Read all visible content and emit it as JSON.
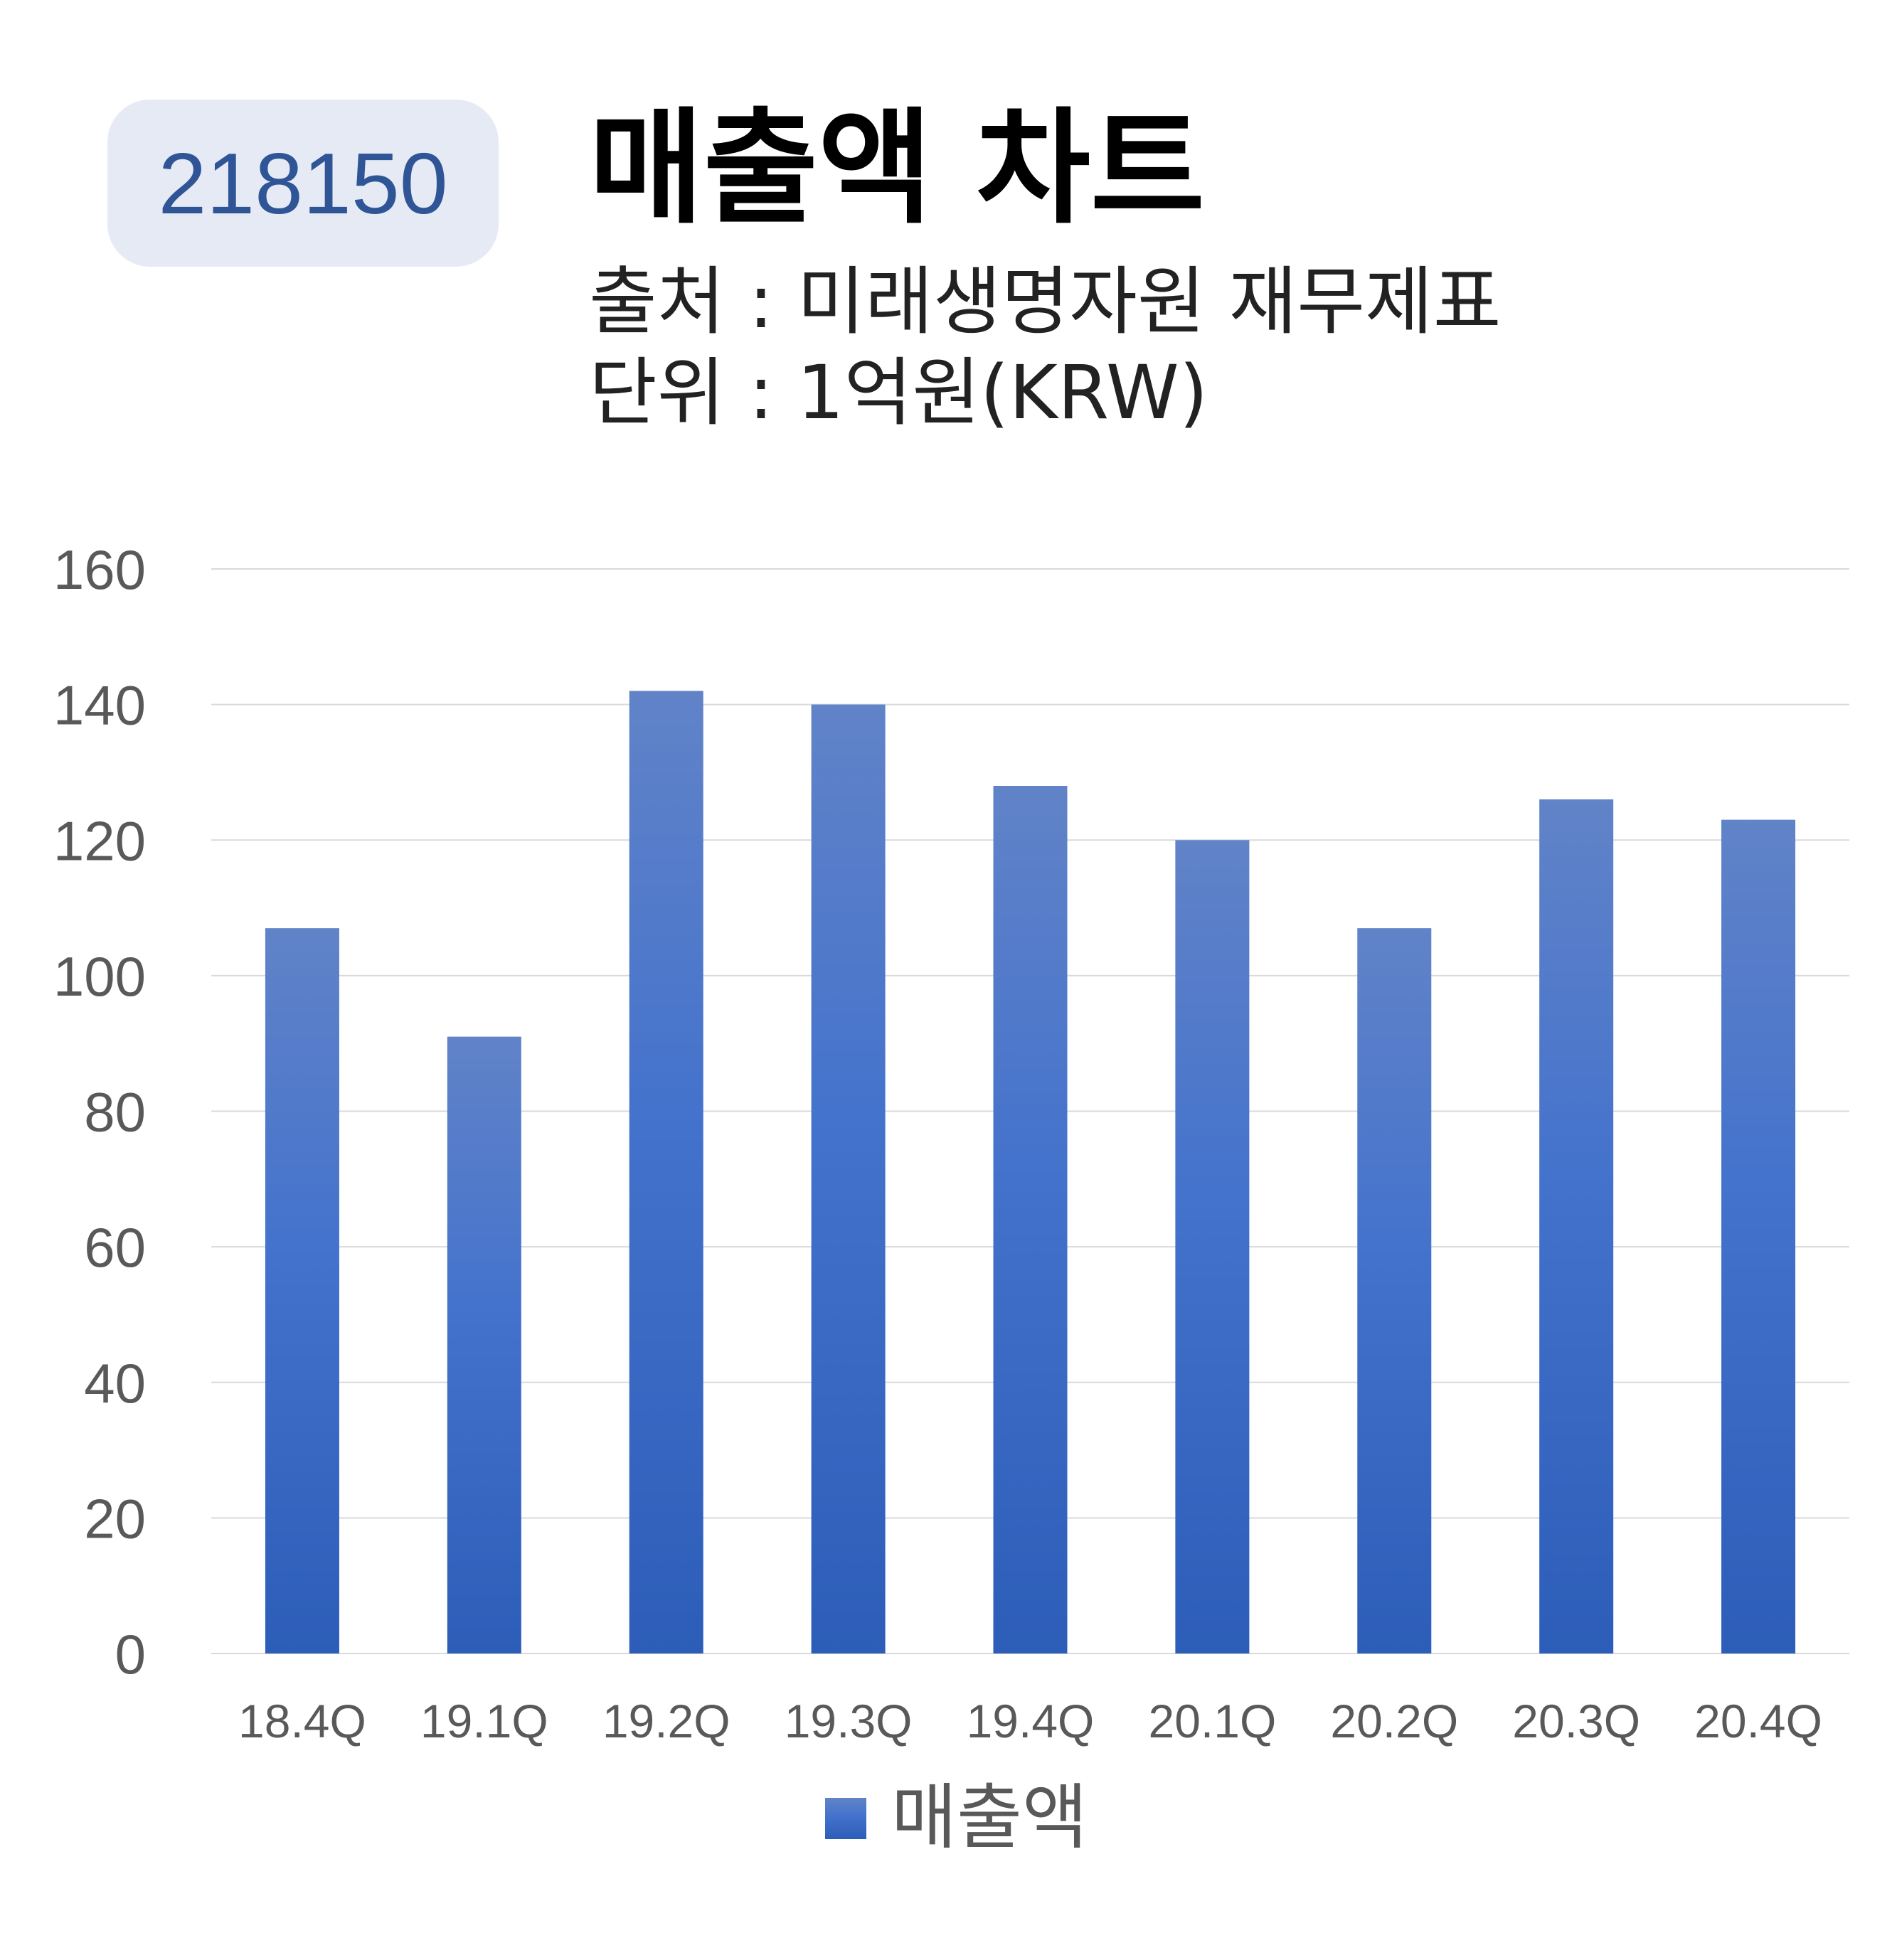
{
  "header": {
    "ticker": "218150",
    "title": "매출액 차트",
    "source": "출처 : 미래생명자원 재무제표",
    "unit": "단위 : 1억원(KRW)"
  },
  "colors": {
    "bar_top": "#6183c8",
    "bar_bottom": "#2c5db8",
    "badge_bg": "#e5eaf5",
    "badge_text": "#2f5597",
    "gridline": "#d9d9d9"
  },
  "chart_data": {
    "type": "bar",
    "categories": [
      "18.4Q",
      "19.1Q",
      "19.2Q",
      "19.3Q",
      "19.4Q",
      "20.1Q",
      "20.2Q",
      "20.3Q",
      "20.4Q"
    ],
    "series": [
      {
        "name": "매출액",
        "values": [
          107,
          91,
          142,
          140,
          128,
          120,
          107,
          126,
          123
        ]
      }
    ],
    "ylim": [
      0,
      160
    ],
    "yticks": [
      0,
      20,
      40,
      60,
      80,
      100,
      120,
      140,
      160
    ],
    "grid": true,
    "legend": "bottom"
  }
}
